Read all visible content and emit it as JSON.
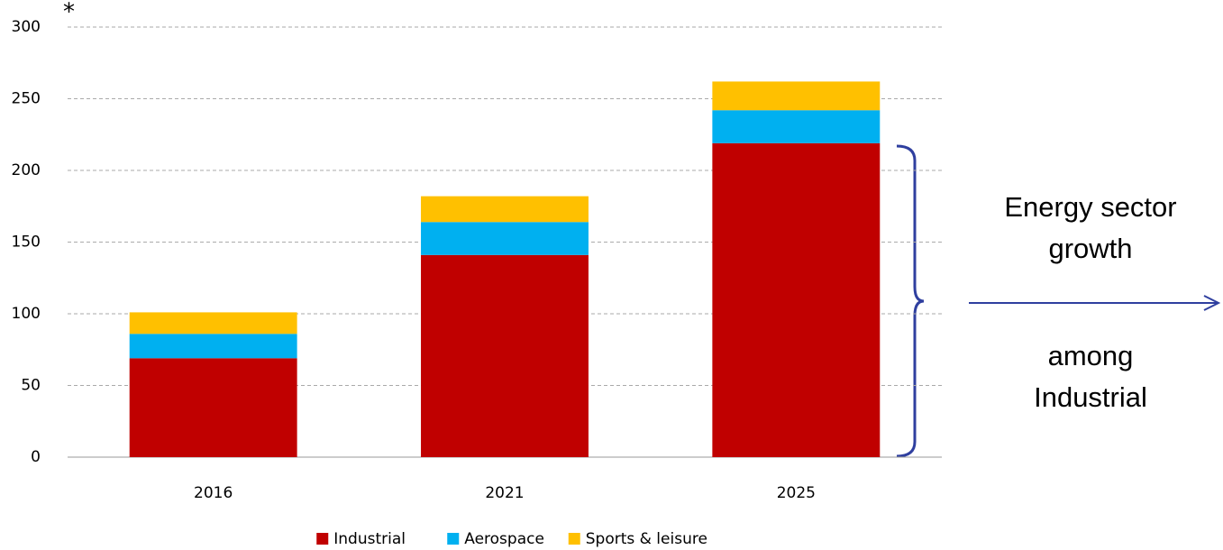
{
  "chart_data": {
    "type": "stacked_bar",
    "annotations": [
      "*",
      "Energy sector growth",
      "among Industrial"
    ],
    "categories": [
      "2016",
      "2021",
      "2025"
    ],
    "series": [
      {
        "name": "Industrial",
        "color": "#c00000",
        "values": [
          69,
          141,
          219
        ]
      },
      {
        "name": "Aerospace",
        "color": "#00b0f0",
        "values": [
          17,
          23,
          23
        ]
      },
      {
        "name": "Sports & leisure",
        "color": "#ffc000",
        "values": [
          15,
          18,
          20
        ]
      }
    ],
    "ylim": [
      0,
      300
    ],
    "yticks": [
      0,
      50,
      100,
      150,
      200,
      250,
      300
    ],
    "grid": true,
    "legend": "bottom"
  }
}
